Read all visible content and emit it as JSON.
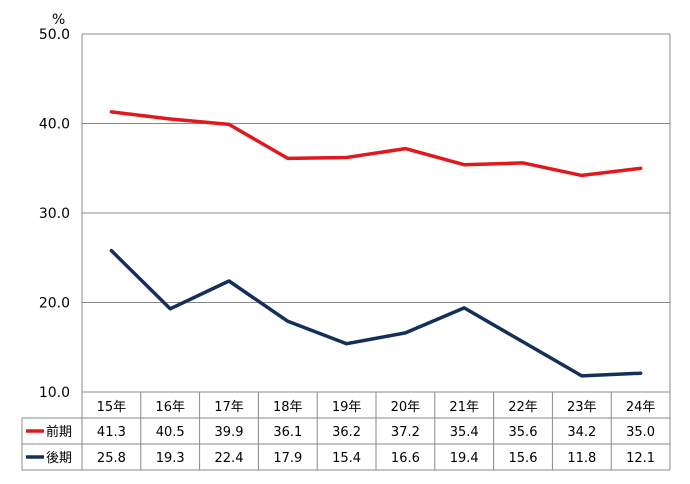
{
  "chart_data": {
    "type": "line",
    "unit": "%",
    "categories": [
      "15年",
      "16年",
      "17年",
      "18年",
      "19年",
      "20年",
      "21年",
      "22年",
      "23年",
      "24年"
    ],
    "ylim": [
      10.0,
      50.0
    ],
    "yticks": [
      10.0,
      20.0,
      30.0,
      40.0,
      50.0
    ],
    "ytick_labels": [
      "10.0",
      "20.0",
      "30.0",
      "40.0",
      "50.0"
    ],
    "grid": true,
    "legend": "data-table",
    "series": [
      {
        "name": "前期",
        "color": "#e0191e",
        "values": [
          41.3,
          40.5,
          39.9,
          36.1,
          36.2,
          37.2,
          35.4,
          35.6,
          34.2,
          35.0
        ],
        "labels": [
          "41.3",
          "40.5",
          "39.9",
          "36.1",
          "36.2",
          "37.2",
          "35.4",
          "35.6",
          "34.2",
          "35.0"
        ]
      },
      {
        "name": "後期",
        "color": "#14305a",
        "values": [
          25.8,
          19.3,
          22.4,
          17.9,
          15.4,
          16.6,
          19.4,
          15.6,
          11.8,
          12.1
        ],
        "labels": [
          "25.8",
          "19.3",
          "22.4",
          "17.9",
          "15.4",
          "16.6",
          "19.4",
          "15.6",
          "11.8",
          "12.1"
        ]
      }
    ]
  }
}
